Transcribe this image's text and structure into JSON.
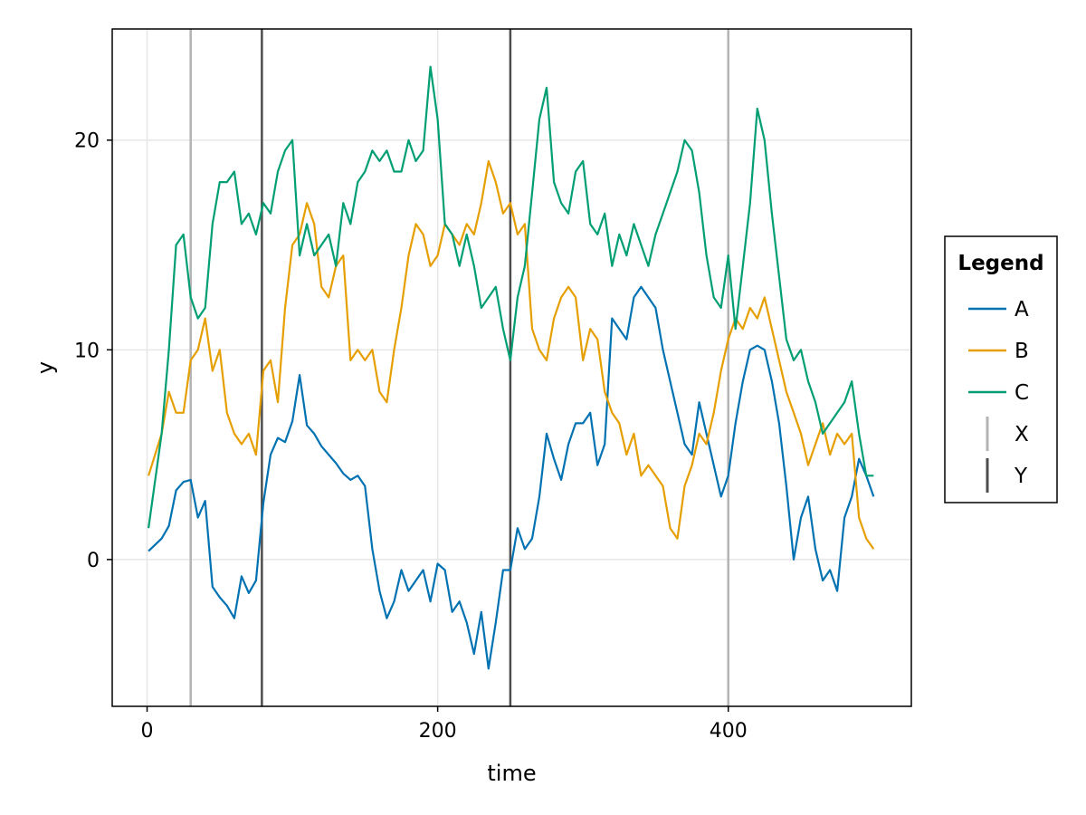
{
  "chart_data": {
    "type": "line",
    "title": "",
    "xlabel": "time",
    "ylabel": "y",
    "xlim": [
      -24,
      526
    ],
    "ylim": [
      -7,
      25.3
    ],
    "xticks": [
      0,
      200,
      400
    ],
    "yticks": [
      0,
      10,
      20
    ],
    "grid": true,
    "legend": {
      "title": "Legend",
      "placement": "right",
      "entries": [
        {
          "label": "A",
          "kind": "line",
          "color": "#0072b2"
        },
        {
          "label": "B",
          "kind": "line",
          "color": "#e69f00"
        },
        {
          "label": "C",
          "kind": "line",
          "color": "#009e73"
        },
        {
          "label": "X",
          "kind": "vline",
          "color": "#b3b3b3"
        },
        {
          "label": "Y",
          "kind": "vline",
          "color": "#4d4d4d"
        }
      ]
    },
    "vlines": [
      {
        "series": "X",
        "x": [
          30,
          400
        ],
        "color": "#b3b3b3"
      },
      {
        "series": "Y",
        "x": [
          79,
          250
        ],
        "color": "#4d4d4d"
      }
    ],
    "series": [
      {
        "name": "A",
        "color": "#0072b2",
        "x": [
          1,
          10,
          15,
          20,
          25,
          30,
          35,
          40,
          45,
          50,
          55,
          60,
          65,
          70,
          75,
          80,
          85,
          90,
          95,
          100,
          105,
          110,
          115,
          120,
          125,
          130,
          135,
          140,
          145,
          150,
          155,
          160,
          165,
          170,
          175,
          180,
          185,
          190,
          195,
          200,
          205,
          210,
          215,
          220,
          225,
          230,
          235,
          240,
          245,
          250,
          255,
          260,
          265,
          270,
          275,
          280,
          285,
          290,
          295,
          300,
          305,
          310,
          315,
          320,
          325,
          330,
          335,
          340,
          345,
          350,
          355,
          360,
          365,
          370,
          375,
          380,
          385,
          390,
          395,
          400,
          405,
          410,
          415,
          420,
          425,
          430,
          435,
          440,
          445,
          450,
          455,
          460,
          465,
          470,
          475,
          480,
          485,
          490,
          495,
          500
        ],
        "y": [
          0.4,
          1.0,
          1.6,
          3.3,
          3.7,
          3.8,
          2.0,
          2.8,
          -1.3,
          -1.8,
          -2.2,
          -2.8,
          -0.8,
          -1.6,
          -1.0,
          2.7,
          5.0,
          5.8,
          5.6,
          6.6,
          8.8,
          6.4,
          6.0,
          5.4,
          5.0,
          4.6,
          4.1,
          3.8,
          4.0,
          3.5,
          0.5,
          -1.5,
          -2.8,
          -2.0,
          -0.5,
          -1.5,
          -1.0,
          -0.5,
          -2.0,
          -0.2,
          -0.5,
          -2.5,
          -2.0,
          -3.0,
          -4.5,
          -2.5,
          -5.2,
          -3.0,
          -0.5,
          -0.5,
          1.5,
          0.5,
          1.0,
          3.0,
          6.0,
          4.8,
          3.8,
          5.5,
          6.5,
          6.5,
          7.0,
          4.5,
          5.5,
          11.5,
          11.0,
          10.5,
          12.5,
          13.0,
          12.5,
          12.0,
          10.0,
          8.5,
          7.0,
          5.5,
          5.0,
          7.5,
          6.0,
          4.5,
          3.0,
          4.0,
          6.5,
          8.5,
          10.0,
          10.2,
          10.0,
          8.5,
          6.5,
          3.5,
          0.0,
          2.0,
          3.0,
          0.5,
          -1.0,
          -0.5,
          -1.5,
          2.0,
          3.0,
          4.8,
          4.0,
          3.0
        ]
      },
      {
        "name": "B",
        "color": "#e69f00",
        "x": [
          1,
          10,
          15,
          20,
          25,
          30,
          35,
          40,
          45,
          50,
          55,
          60,
          65,
          70,
          75,
          80,
          85,
          90,
          95,
          100,
          105,
          110,
          115,
          120,
          125,
          130,
          135,
          140,
          145,
          150,
          155,
          160,
          165,
          170,
          175,
          180,
          185,
          190,
          195,
          200,
          205,
          210,
          215,
          220,
          225,
          230,
          235,
          240,
          245,
          250,
          255,
          260,
          265,
          270,
          275,
          280,
          285,
          290,
          295,
          300,
          305,
          310,
          315,
          320,
          325,
          330,
          335,
          340,
          345,
          350,
          355,
          360,
          365,
          370,
          375,
          380,
          385,
          390,
          395,
          400,
          405,
          410,
          415,
          420,
          425,
          430,
          435,
          440,
          445,
          450,
          455,
          460,
          465,
          470,
          475,
          480,
          485,
          490,
          495,
          500
        ],
        "y": [
          4.0,
          6.0,
          8.0,
          7.0,
          7.0,
          9.5,
          10.0,
          11.5,
          9.0,
          10.0,
          7.0,
          6.0,
          5.5,
          6.0,
          5.0,
          9.0,
          9.5,
          7.5,
          12.0,
          15.0,
          15.5,
          17.0,
          16.0,
          13.0,
          12.5,
          14.0,
          14.5,
          9.5,
          10.0,
          9.5,
          10.0,
          8.0,
          7.5,
          10.0,
          12.0,
          14.5,
          16.0,
          15.5,
          14.0,
          14.5,
          16.0,
          15.5,
          15.0,
          16.0,
          15.5,
          17.0,
          19.0,
          18.0,
          16.5,
          17.0,
          15.5,
          16.0,
          11.0,
          10.0,
          9.5,
          11.5,
          12.5,
          13.0,
          12.5,
          9.5,
          11.0,
          10.5,
          8.0,
          7.0,
          6.5,
          5.0,
          6.0,
          4.0,
          4.5,
          4.0,
          3.5,
          1.5,
          1.0,
          3.5,
          4.5,
          6.0,
          5.5,
          7.0,
          9.0,
          10.5,
          11.5,
          11.0,
          12.0,
          11.5,
          12.5,
          11.0,
          9.5,
          8.0,
          7.0,
          6.0,
          4.5,
          5.5,
          6.5,
          5.0,
          6.0,
          5.5,
          6.0,
          2.0,
          1.0,
          0.5
        ]
      },
      {
        "name": "C",
        "color": "#009e73",
        "x": [
          1,
          10,
          15,
          20,
          25,
          30,
          35,
          40,
          45,
          50,
          55,
          60,
          65,
          70,
          75,
          80,
          85,
          90,
          95,
          100,
          105,
          110,
          115,
          120,
          125,
          130,
          135,
          140,
          145,
          150,
          155,
          160,
          165,
          170,
          175,
          180,
          185,
          190,
          195,
          200,
          205,
          210,
          215,
          220,
          225,
          230,
          235,
          240,
          245,
          250,
          255,
          260,
          265,
          270,
          275,
          280,
          285,
          290,
          295,
          300,
          305,
          310,
          315,
          320,
          325,
          330,
          335,
          340,
          345,
          350,
          355,
          360,
          365,
          370,
          375,
          380,
          385,
          390,
          395,
          400,
          405,
          410,
          415,
          420,
          425,
          430,
          435,
          440,
          445,
          450,
          455,
          460,
          465,
          470,
          475,
          480,
          485,
          490,
          495,
          500
        ],
        "y": [
          1.5,
          6.0,
          10.0,
          15.0,
          15.5,
          12.5,
          11.5,
          12.0,
          16.0,
          18.0,
          18.0,
          18.5,
          16.0,
          16.5,
          15.5,
          17.0,
          16.5,
          18.5,
          19.5,
          20.0,
          14.5,
          16.0,
          14.5,
          15.0,
          15.5,
          14.0,
          17.0,
          16.0,
          18.0,
          18.5,
          19.5,
          19.0,
          19.5,
          18.5,
          18.5,
          20.0,
          19.0,
          19.5,
          23.5,
          21.0,
          16.0,
          15.5,
          14.0,
          15.5,
          14.0,
          12.0,
          12.5,
          13.0,
          11.0,
          9.5,
          12.5,
          14.0,
          17.5,
          21.0,
          22.5,
          18.0,
          17.0,
          16.5,
          18.5,
          19.0,
          16.0,
          15.5,
          16.5,
          14.0,
          15.5,
          14.5,
          16.0,
          15.0,
          14.0,
          15.5,
          16.5,
          17.5,
          18.5,
          20.0,
          19.5,
          17.5,
          14.5,
          12.5,
          12.0,
          14.5,
          11.0,
          14.0,
          17.0,
          21.5,
          20.0,
          16.5,
          13.5,
          10.5,
          9.5,
          10.0,
          8.5,
          7.5,
          6.0,
          6.5,
          7.0,
          7.5,
          8.5,
          6.0,
          4.0,
          4.0
        ]
      }
    ]
  }
}
